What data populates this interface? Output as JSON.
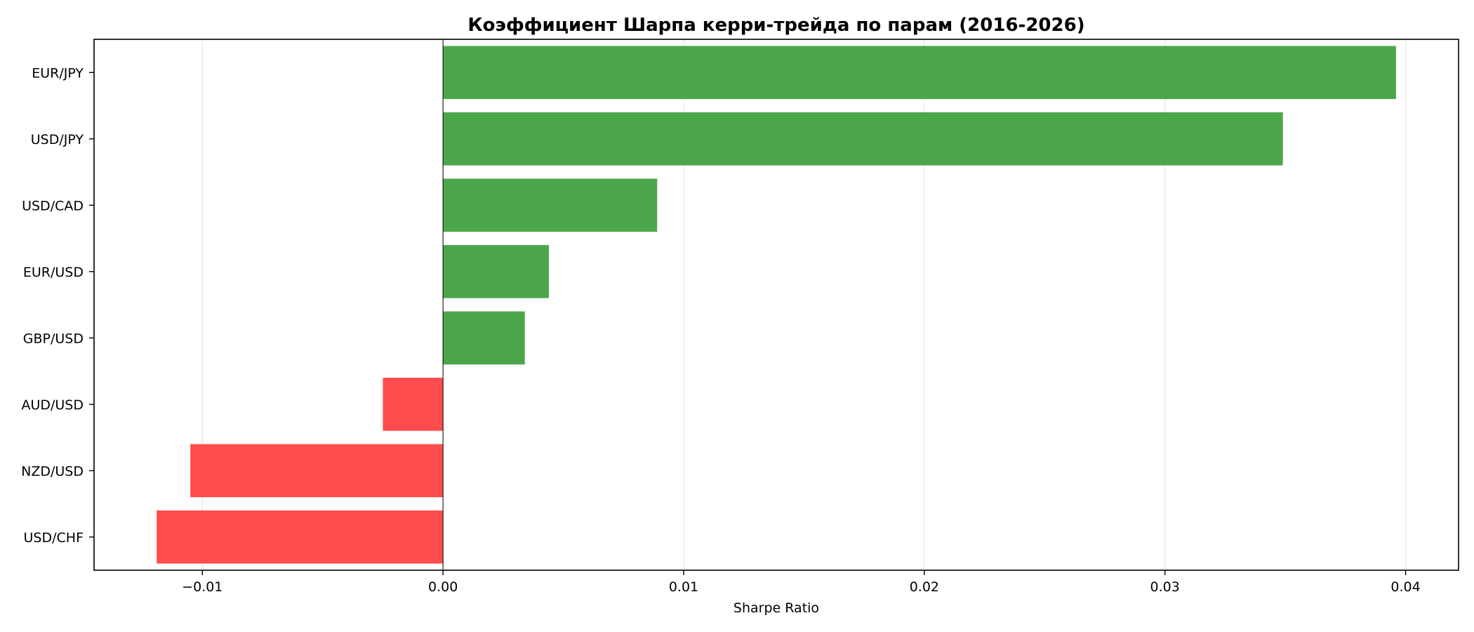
{
  "chart_data": {
    "type": "bar",
    "orientation": "horizontal",
    "title": "Коэффициент Шарпа керри-трейда по парам (2016-2026)",
    "xlabel": "Sharpe Ratio",
    "ylabel": "",
    "xlim": [
      -0.0145,
      0.0422
    ],
    "xticks": [
      -0.01,
      0.0,
      0.01,
      0.02,
      0.03,
      0.04
    ],
    "xtick_labels": [
      "−0.01",
      "0.00",
      "0.01",
      "0.02",
      "0.03",
      "0.04"
    ],
    "categories": [
      "EUR/JPY",
      "USD/JPY",
      "USD/CAD",
      "EUR/USD",
      "GBP/USD",
      "AUD/USD",
      "NZD/USD",
      "USD/CHF"
    ],
    "values": [
      0.0396,
      0.0349,
      0.0089,
      0.0044,
      0.0034,
      -0.0025,
      -0.0105,
      -0.0119
    ],
    "grid": "x",
    "zero_line": true,
    "colors": {
      "positive": "#4ca64c",
      "negative": "#ff4d4d",
      "grid": "#e6e6e6",
      "axis": "#000000"
    }
  }
}
